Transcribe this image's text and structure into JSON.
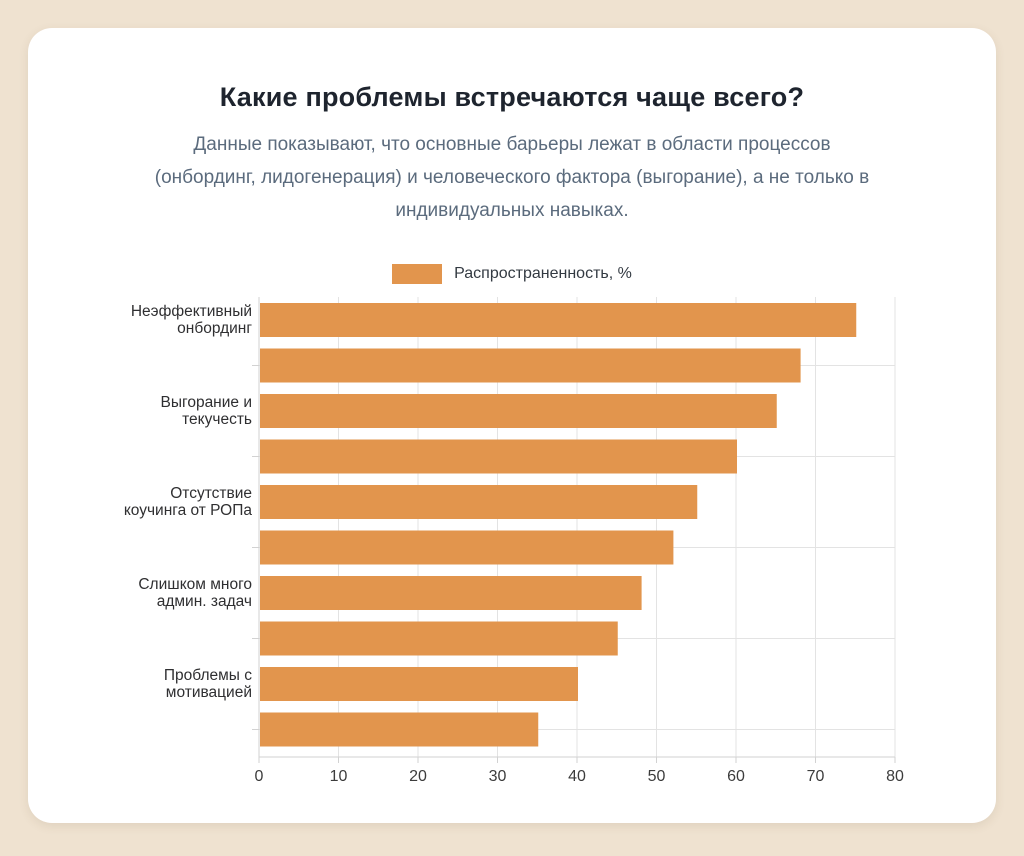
{
  "page": {
    "background_color": "#efe2d0",
    "card_background": "#ffffff"
  },
  "header": {
    "title": "Какие проблемы встречаются чаще всего?",
    "subtitle_lines": [
      "Данные показывают, что основные барьеры лежат в области процессов",
      "(онбординг, лидогенерация) и человеческого фактора (выгорание), а не только в",
      "индивидуальных навыках."
    ]
  },
  "legend": {
    "label": "Распространенность, %"
  },
  "chart_data": {
    "type": "bar",
    "orientation": "horizontal",
    "title": "",
    "xlabel": "",
    "ylabel": "",
    "series_name": "Распространенность, %",
    "categories": [
      "Неэффективный онбординг",
      "",
      "Выгорание и текучесть",
      "",
      "Отсутствие коучинга от РОПа",
      "",
      "Слишком много админ. задач",
      "",
      "Проблемы с мотивацией",
      ""
    ],
    "label_lines": [
      [
        "Неэффективный",
        "онбординг"
      ],
      [],
      [
        "Выгорание и",
        "текучесть"
      ],
      [],
      [
        "Отсутствие",
        "коучинга от РОПа"
      ],
      [],
      [
        "Слишком много",
        "админ. задач"
      ],
      [],
      [
        "Проблемы с",
        "мотивацией"
      ],
      []
    ],
    "values": [
      75,
      68,
      65,
      60,
      55,
      52,
      48,
      45,
      40,
      35
    ],
    "xlim": [
      0,
      80
    ],
    "x_ticks": [
      0,
      10,
      20,
      30,
      40,
      50,
      60,
      70,
      80
    ],
    "grid": true,
    "legend_position": "top",
    "bar_color": "#e2954d",
    "grid_color": "#e3e3e3",
    "axis_color": "#d2d2d2",
    "tick_label_color": "#3c3c3c",
    "category_label_color": "#2f2f31"
  }
}
